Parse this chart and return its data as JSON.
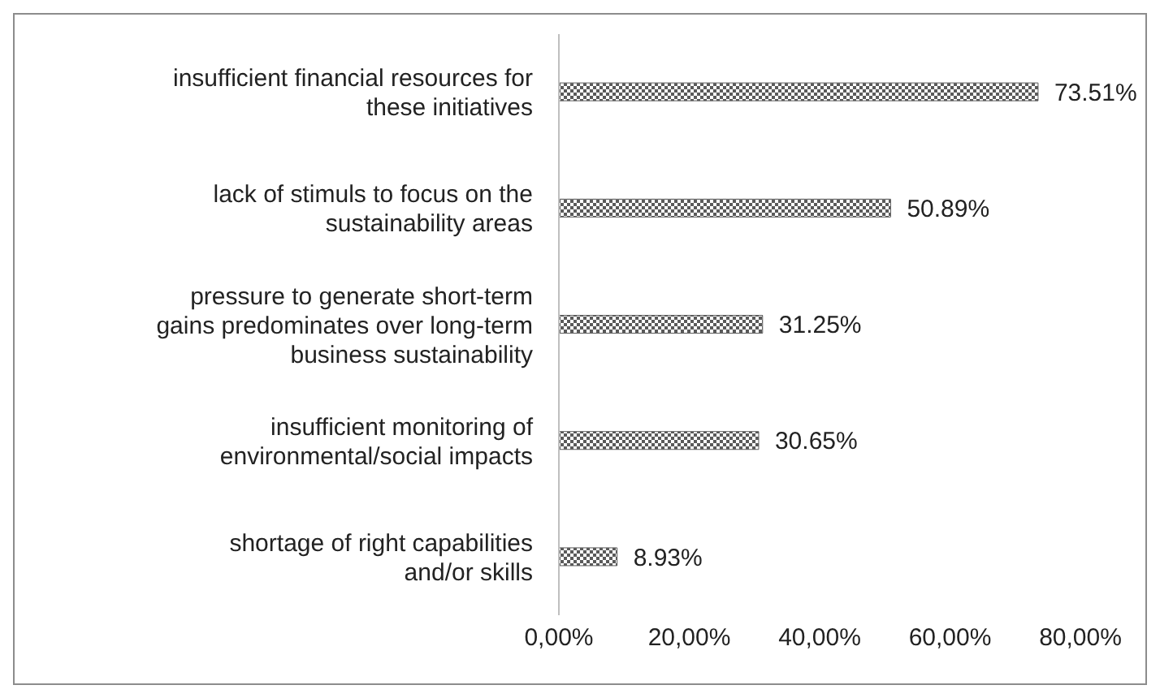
{
  "chart_data": {
    "type": "bar",
    "orientation": "horizontal",
    "categories": [
      "insufficient financial resources for these initiatives",
      "lack of stimuls to focus on the sustainability areas",
      "pressure to generate short-term gains predominates over long-term business sustainability",
      "insufficient monitoring of environmental/social impacts",
      "shortage of right capabilities and/or skills"
    ],
    "values": [
      73.51,
      50.89,
      31.25,
      30.65,
      8.93
    ],
    "value_labels": [
      "73.51%",
      "50.89%",
      "31.25%",
      "30.65%",
      "8.93%"
    ],
    "color": "#5a5a5a",
    "xlim": [
      0,
      80
    ],
    "xticks": [
      {
        "value": 0,
        "label": "0,00%"
      },
      {
        "value": 20,
        "label": "20,00%"
      },
      {
        "value": 40,
        "label": "40,00%"
      },
      {
        "value": 60,
        "label": "60,00%"
      },
      {
        "value": 80,
        "label": "80,00%"
      }
    ],
    "grid": false
  }
}
